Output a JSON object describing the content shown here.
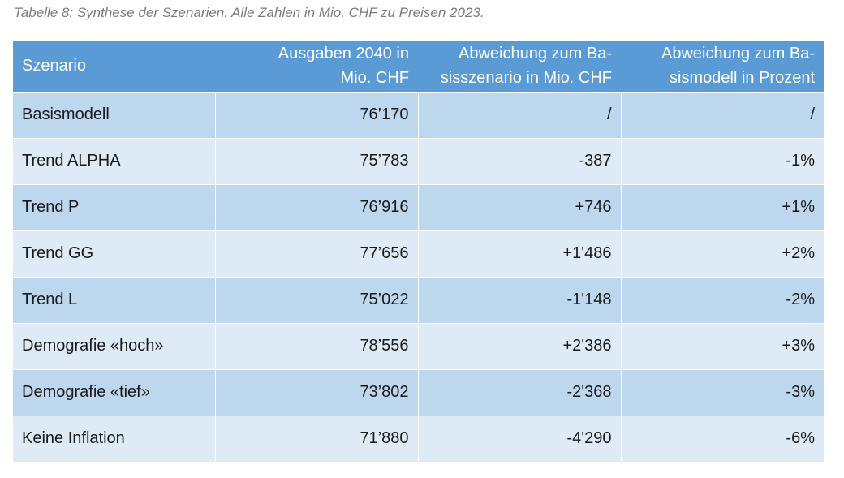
{
  "caption": "Tabelle 8: Synthese der Szenarien. Alle Zahlen in Mio. CHF zu Preisen 2023.",
  "table": {
    "headers": [
      [
        "Szenario"
      ],
      [
        "Ausgaben 2040 in",
        "Mio. CHF"
      ],
      [
        "Abweichung zum Ba-",
        "sisszenario in Mio. CHF"
      ],
      [
        "Abweichung zum Ba-",
        "sismodell in Prozent"
      ]
    ],
    "rows": [
      [
        "Basismodell",
        "76’170",
        "/",
        "/"
      ],
      [
        "Trend ALPHA",
        "75’783",
        "-387",
        "-1%"
      ],
      [
        "Trend P",
        "76’916",
        "+746",
        "+1%"
      ],
      [
        "Trend GG",
        "77’656",
        "+1'486",
        "+2%"
      ],
      [
        "Trend L",
        "75’022",
        "-1'148",
        "-2%"
      ],
      [
        "Demografie «hoch»",
        "78’556",
        "+2'386",
        "+3%"
      ],
      [
        "Demografie «tief»",
        "73’802",
        "-2'368",
        "-3%"
      ],
      [
        "Keine Inflation",
        "71’880",
        "-4'290",
        "-6%"
      ]
    ]
  },
  "colors": {
    "header_bg": "#5b9bd5",
    "row_dark": "#bdd7ee",
    "row_light": "#deebf7"
  }
}
